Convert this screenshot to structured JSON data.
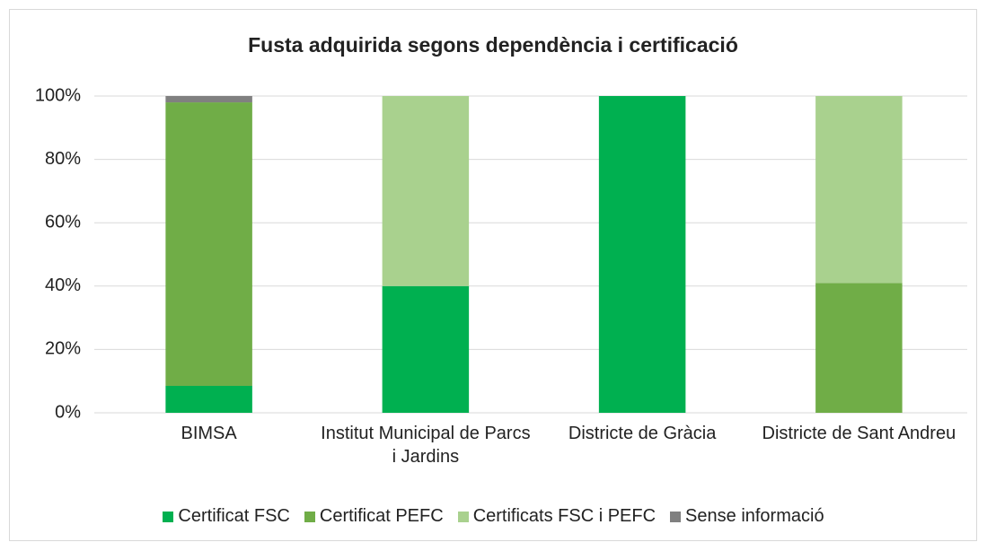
{
  "chart_data": {
    "type": "stacked_bar",
    "title": "Fusta adquirida segons dependència i certificació",
    "categories": [
      "BIMSA",
      "Institut Municipal de Parcs i Jardins",
      "Districte de Gràcia",
      "Districte de Sant Andreu"
    ],
    "series": [
      {
        "name": "Certificat FSC",
        "color": "#00b050",
        "values": [
          8.5,
          40,
          100,
          0
        ]
      },
      {
        "name": "Certificat PEFC",
        "color": "#70ad47",
        "values": [
          89.5,
          0,
          0,
          41
        ]
      },
      {
        "name": "Certificats FSC i PEFC",
        "color": "#a9d18e",
        "values": [
          0,
          60,
          0,
          59
        ]
      },
      {
        "name": "Sense informació",
        "color": "#808080",
        "values": [
          2,
          0,
          0,
          0
        ]
      }
    ],
    "ylim": [
      0,
      100
    ],
    "yticks": [
      {
        "value": 0,
        "label": "0%"
      },
      {
        "value": 20,
        "label": "20%"
      },
      {
        "value": 40,
        "label": "40%"
      },
      {
        "value": 60,
        "label": "60%"
      },
      {
        "value": 80,
        "label": "80%"
      },
      {
        "value": 100,
        "label": "100%"
      }
    ],
    "grid": true,
    "legend": "bottom"
  }
}
